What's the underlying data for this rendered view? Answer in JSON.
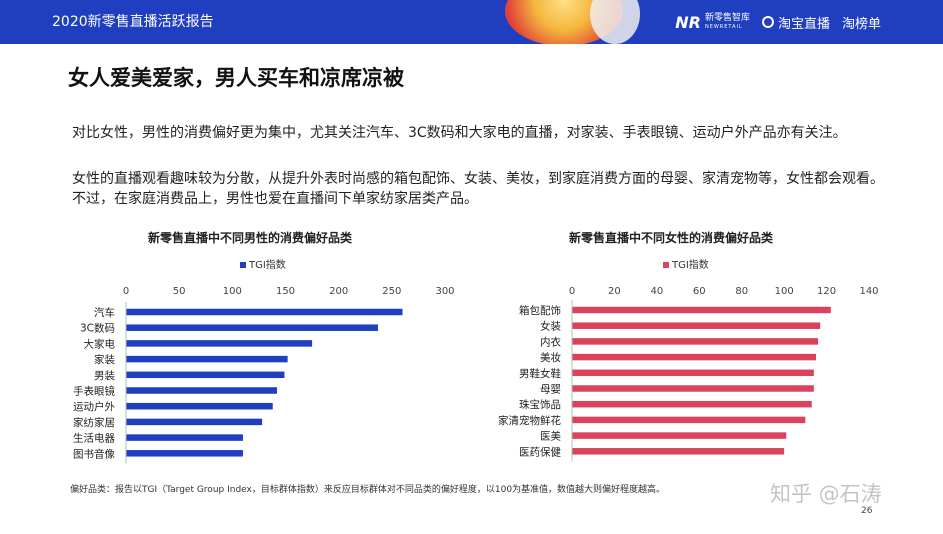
{
  "header": {
    "title": "2020新零售直播活跃报告",
    "logos": {
      "newretail_mark": "NR",
      "newretail_name": "新零售智库",
      "newretail_sub": "NEWRETAIL",
      "taobao_live": "淘宝直播",
      "taobangdan": "淘榜单"
    }
  },
  "page": {
    "title": "女人爱美爱家，男人买车和凉席凉被",
    "paragraph1": "对比女性，男性的消费偏好更为集中，尤其关注汽车、3C数码和大家电的直播，对家装、手表眼镜、运动户外产品亦有关注。",
    "paragraph2": "女性的直播观看趣味较为分散，从提升外表时尚感的箱包配饰、女装、美妆，到家庭消费方面的母婴、家清宠物等，女性都会观看。不过，在家庭消费品上，男性也爱在直播间下单家纺家居类产品。",
    "footnote": "偏好品类：报告以TGI（Target Group Index，目标群体指数）来反应目标群体对不同品类的偏好程度，以100为基准值，数值越大则偏好程度越高。",
    "watermark": "知乎 @石涛",
    "page_number": "26"
  },
  "chart_data": [
    {
      "type": "bar",
      "orientation": "horizontal",
      "title": "新零售直播中不同男性的消费偏好品类",
      "legend": "top",
      "categories": [
        "汽车",
        "3C数码",
        "大家电",
        "家装",
        "男装",
        "手表眼镜",
        "运动户外",
        "家纺家居",
        "生活电器",
        "图书音像"
      ],
      "series": [
        {
          "name": "TGI指数",
          "values": [
            260,
            237,
            175,
            152,
            149,
            142,
            138,
            128,
            110,
            110
          ]
        }
      ],
      "xlim": [
        0,
        300
      ],
      "ticks": [
        0,
        50,
        100,
        150,
        200,
        250,
        300
      ],
      "axis_position": "top",
      "color": "#1f3fc0"
    },
    {
      "type": "bar",
      "orientation": "horizontal",
      "title": "新零售直播中不同女性的消费偏好品类",
      "legend": "top",
      "categories": [
        "箱包配饰",
        "女装",
        "内衣",
        "美妆",
        "男鞋女鞋",
        "母婴",
        "珠宝饰品",
        "家清宠物鲜花",
        "医美",
        "医药保健"
      ],
      "series": [
        {
          "name": "TGI指数",
          "values": [
            122,
            117,
            116,
            115,
            114,
            114,
            113,
            110,
            101,
            100
          ]
        }
      ],
      "xlim": [
        0,
        140
      ],
      "ticks": [
        0,
        20,
        40,
        60,
        80,
        100,
        120,
        140
      ],
      "axis_position": "top",
      "color": "#d9435e"
    }
  ]
}
